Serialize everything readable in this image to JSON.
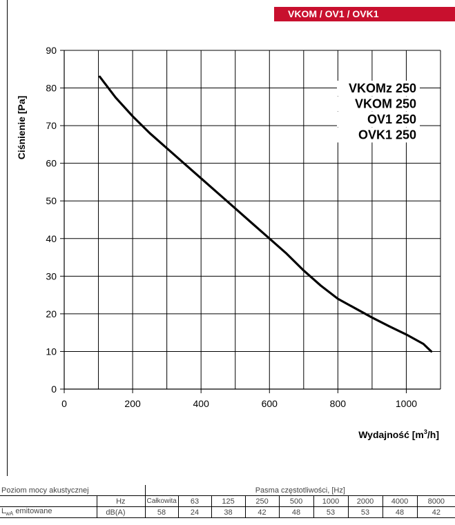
{
  "header": {
    "badge": "VKOM / OV1 / OVK1"
  },
  "models": [
    "VKOMz 250",
    "VKOM 250",
    "OV1 250",
    "OVK1 250"
  ],
  "chart_data": {
    "type": "line",
    "xlabel": "Wydajność [m³/h]",
    "ylabel": "Ciśnienie [Pa]",
    "xlim": [
      0,
      1100
    ],
    "ylim": [
      0,
      90
    ],
    "x_ticks": [
      0,
      200,
      400,
      600,
      800,
      1000
    ],
    "y_ticks": [
      0,
      10,
      20,
      30,
      40,
      50,
      60,
      70,
      80,
      90
    ],
    "grid": true,
    "series": [
      {
        "color": "#000000",
        "x": [
          104,
          150,
          200,
          250,
          300,
          350,
          400,
          450,
          500,
          550,
          600,
          650,
          700,
          750,
          800,
          850,
          900,
          950,
          1000,
          1050,
          1073
        ],
        "y": [
          83,
          77.5,
          72.5,
          68,
          64,
          60,
          56,
          52,
          48,
          44,
          40,
          36,
          31.5,
          27.5,
          24,
          21.5,
          19,
          16.7,
          14.5,
          12,
          10
        ]
      }
    ]
  },
  "acoustic": {
    "title": "Poziom mocy akustycznej",
    "bands_title": "Pasma częstotliwości, [Hz]",
    "unit_label": "Hz",
    "total_label": "Całkowita",
    "bands": [
      "63",
      "125",
      "250",
      "500",
      "1000",
      "2000",
      "4000",
      "8000"
    ],
    "row_label": "emitowane",
    "row_label_prefix": "L",
    "row_label_sub": "wA",
    "row_unit": "dB(A)",
    "total_value": "58",
    "values": [
      "24",
      "38",
      "42",
      "48",
      "53",
      "53",
      "48",
      "42"
    ]
  }
}
